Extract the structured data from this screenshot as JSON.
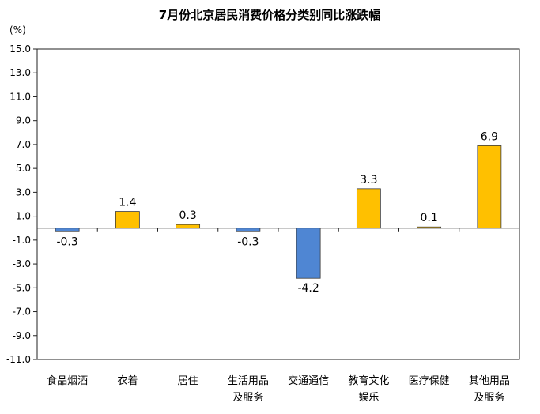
{
  "chart_data": {
    "type": "bar",
    "title": "7月份北京居民消费价格分类别同比涨跌幅",
    "unit_label": "(%)",
    "xlabel": "",
    "ylabel": "",
    "ylim": [
      -11.0,
      15.0
    ],
    "yticks": [
      "15.0",
      "13.0",
      "11.0",
      "9.0",
      "7.0",
      "5.0",
      "3.0",
      "1.0",
      "-1.0",
      "-3.0",
      "-5.0",
      "-7.0",
      "-9.0",
      "-11.0"
    ],
    "ytick_values": [
      15,
      13,
      11,
      9,
      7,
      5,
      3,
      1,
      -1,
      -3,
      -5,
      -7,
      -9,
      -11
    ],
    "categories": [
      [
        "食品烟酒"
      ],
      [
        "衣着"
      ],
      [
        "居住"
      ],
      [
        "生活用品",
        "及服务"
      ],
      [
        "交通通信"
      ],
      [
        "教育文化",
        "娱乐"
      ],
      [
        "医疗保健"
      ],
      [
        "其他用品",
        "及服务"
      ]
    ],
    "values": [
      -0.3,
      1.4,
      0.3,
      -0.3,
      -4.2,
      3.3,
      0.1,
      6.9
    ],
    "value_labels": [
      "-0.3",
      "1.4",
      "0.3",
      "-0.3",
      "-4.2",
      "3.3",
      "0.1",
      "6.9"
    ],
    "colors": {
      "positive": "#FFC000",
      "negative": "#4F86D3",
      "bar_stroke": "#3a3a3a"
    },
    "grid": false,
    "legend": "none"
  }
}
